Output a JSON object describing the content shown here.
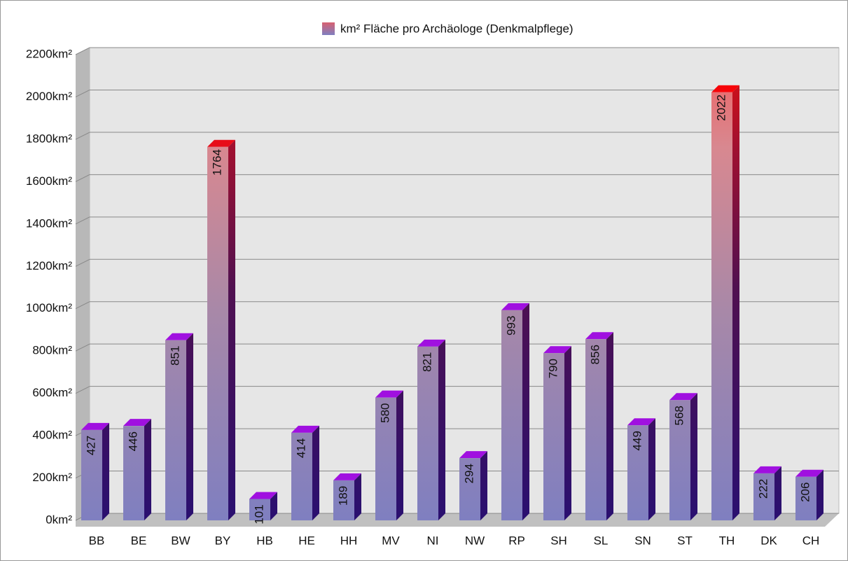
{
  "chart_data": {
    "type": "bar",
    "categories": [
      "BB",
      "BE",
      "BW",
      "BY",
      "HB",
      "HE",
      "HH",
      "MV",
      "NI",
      "NW",
      "RP",
      "SH",
      "SL",
      "SN",
      "ST",
      "TH",
      "DK",
      "CH"
    ],
    "series": [
      {
        "name": "km² Fläche pro Archäologe (Denkmalpflege)",
        "color": "#7f7fc0",
        "values": [
          427,
          446,
          851,
          1764,
          101,
          414,
          189,
          580,
          821,
          294,
          993,
          790,
          856,
          449,
          568,
          2022,
          222,
          206
        ]
      }
    ],
    "ylim": [
      0,
      2200
    ],
    "yticks": [
      {
        "value": 0,
        "label": "0km²"
      },
      {
        "value": 200,
        "label": "200km²"
      },
      {
        "value": 400,
        "label": "400km²"
      },
      {
        "value": 600,
        "label": "600km²"
      },
      {
        "value": 800,
        "label": "800km²"
      },
      {
        "value": 1000,
        "label": "1000km²"
      },
      {
        "value": 1200,
        "label": "1200km²"
      },
      {
        "value": 1400,
        "label": "1400km²"
      },
      {
        "value": 1600,
        "label": "1600km²"
      },
      {
        "value": 1800,
        "label": "1800km²"
      },
      {
        "value": 2000,
        "label": "2000km²"
      },
      {
        "value": 2200,
        "label": "2200km²"
      }
    ],
    "grid": true
  }
}
